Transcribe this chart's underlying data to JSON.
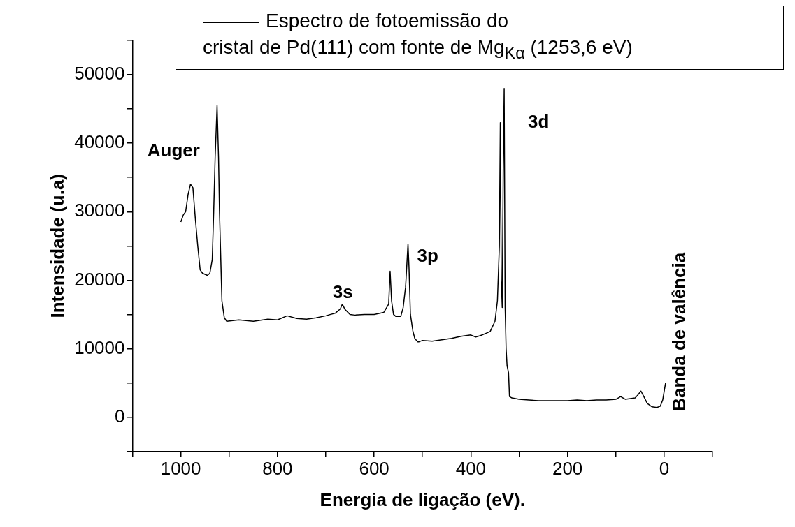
{
  "chart_data": {
    "type": "line",
    "xlabel": "Energia de ligação (eV).",
    "ylabel": "Intensidade (u.a)",
    "xlim": [
      1100,
      -100
    ],
    "xticks": [
      {
        "value": 1100,
        "label": null
      },
      1000,
      {
        "value": 900,
        "label": null
      },
      800,
      {
        "value": 700,
        "label": null
      },
      600,
      {
        "value": 500,
        "label": null
      },
      400,
      {
        "value": 300,
        "label": null
      },
      200,
      {
        "value": 100,
        "label": null
      },
      0,
      {
        "value": -100,
        "label": null
      }
    ],
    "ylim": [
      -5000,
      55000
    ],
    "yticks": [
      {
        "value": -5000,
        "label": null
      },
      0,
      {
        "value": 5000,
        "label": null
      },
      10000,
      {
        "value": 15000,
        "label": null
      },
      20000,
      {
        "value": 25000,
        "label": null
      },
      30000,
      {
        "value": 35000,
        "label": null
      },
      40000,
      {
        "value": 45000,
        "label": null
      },
      50000,
      {
        "value": 55000,
        "label": null
      }
    ],
    "grid": false,
    "legend": "top right",
    "marker": "none",
    "line_style": "solid",
    "series": [
      {
        "name": "Espectro de fotoemissão do cristal de Pd(111) com fonte de Mg$_{Kα}$ (1253,6 eV)",
        "color": "#000000",
        "x": [
          1000,
          995,
          990,
          985,
          980,
          975,
          970,
          965,
          960,
          955,
          945,
          940,
          935,
          932,
          929,
          925,
          922,
          920,
          915,
          910,
          905,
          880,
          850,
          820,
          800,
          780,
          760,
          740,
          720,
          700,
          690,
          680,
          670,
          666,
          660,
          650,
          640,
          620,
          600,
          580,
          570,
          567,
          564,
          560,
          555,
          545,
          540,
          535,
          530,
          528,
          525,
          520,
          516,
          510,
          507,
          500,
          480,
          460,
          440,
          420,
          400,
          390,
          380,
          370,
          360,
          350,
          345,
          341,
          339,
          337,
          335,
          333,
          331,
          329,
          327,
          325,
          322,
          320,
          315,
          300,
          280,
          260,
          240,
          220,
          200,
          180,
          160,
          140,
          120,
          100,
          90,
          80,
          70,
          60,
          55,
          48,
          42,
          35,
          25,
          15,
          8,
          3,
          -3
        ],
        "values": [
          28500,
          29500,
          30000,
          32500,
          34000,
          33500,
          29000,
          25000,
          21500,
          21000,
          20700,
          21000,
          23000,
          30000,
          38000,
          45500,
          38000,
          30000,
          17000,
          14500,
          14000,
          14200,
          14000,
          14300,
          14200,
          14800,
          14400,
          14300,
          14500,
          14800,
          15000,
          15200,
          15800,
          16500,
          15700,
          15000,
          14900,
          15000,
          15000,
          15300,
          16500,
          21300,
          17000,
          15000,
          14700,
          14700,
          16000,
          19000,
          25300,
          22000,
          15000,
          12600,
          11500,
          11000,
          11000,
          11200,
          11100,
          11300,
          11500,
          11800,
          12000,
          11700,
          11900,
          12200,
          12500,
          14000,
          17000,
          25000,
          43000,
          20000,
          16000,
          36000,
          48000,
          16000,
          10000,
          7500,
          6500,
          3000,
          2800,
          2600,
          2500,
          2400,
          2400,
          2400,
          2400,
          2500,
          2400,
          2500,
          2500,
          2600,
          3000,
          2600,
          2700,
          2800,
          3200,
          3800,
          3000,
          2000,
          1500,
          1400,
          1600,
          2500,
          5000
        ]
      }
    ],
    "annotations": [
      "Auger",
      "3s",
      "3p",
      "3d",
      "Banda de valência"
    ]
  }
}
